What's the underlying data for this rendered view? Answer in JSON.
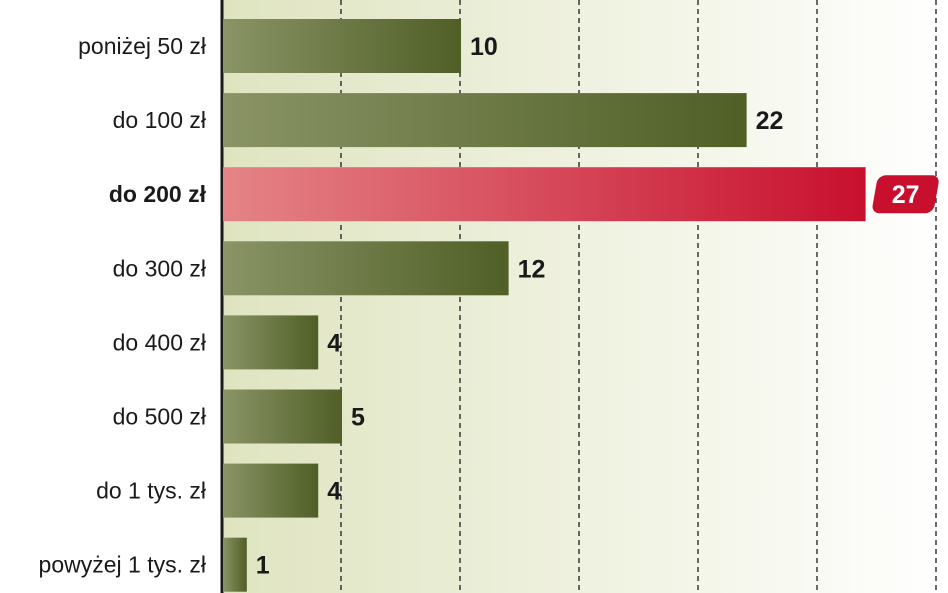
{
  "chart_data": {
    "type": "bar",
    "orientation": "horizontal",
    "categories": [
      "poniżej 50 zł",
      "do 100 zł",
      "do 200 zł",
      "do 300 zł",
      "do 400 zł",
      "do 500 zł",
      "do 1 tys. zł",
      "powyżej 1 tys. zł"
    ],
    "values": [
      10,
      22,
      27,
      12,
      4,
      5,
      4,
      1
    ],
    "highlight_category": "do 200 zł",
    "xlim": [
      0,
      30
    ],
    "grid": true,
    "colors": {
      "bar_start": "#8a9466",
      "bar_end": "#4f5f26",
      "highlight_start": "#e48487",
      "highlight_end": "#c8102e",
      "background_start": "#dfe4c0",
      "background_end": "#ffffff",
      "grid": "#2b2b2b"
    }
  }
}
